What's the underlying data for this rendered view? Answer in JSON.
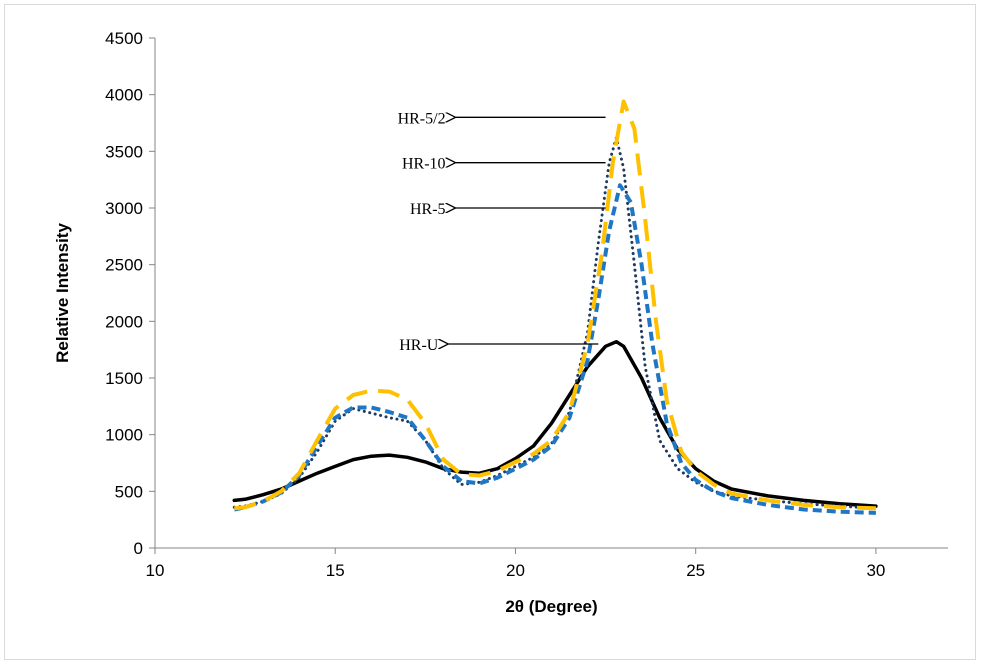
{
  "chart_data": {
    "type": "line",
    "title": "",
    "xlabel": "2θ (Degree)",
    "ylabel": "Relative Intensity",
    "xlim": [
      10,
      32
    ],
    "ylim": [
      0,
      4500
    ],
    "xticks": [
      10,
      15,
      20,
      25,
      30
    ],
    "yticks": [
      0,
      500,
      1000,
      1500,
      2000,
      2500,
      3000,
      3500,
      4000,
      4500
    ],
    "grid": false,
    "legend": "none",
    "series": [
      {
        "name": "HR-U",
        "color": "#000000",
        "style": "solid",
        "x": [
          12.2,
          12.5,
          13,
          13.5,
          14,
          14.5,
          15,
          15.5,
          16,
          16.5,
          17,
          17.5,
          18,
          18.5,
          19,
          19.5,
          20,
          20.5,
          21,
          21.5,
          22,
          22.5,
          22.8,
          23,
          23.5,
          24,
          24.5,
          25,
          25.5,
          26,
          27,
          28,
          29,
          30
        ],
        "y": [
          420,
          430,
          470,
          520,
          590,
          660,
          720,
          780,
          810,
          820,
          800,
          760,
          700,
          670,
          660,
          700,
          790,
          900,
          1100,
          1350,
          1600,
          1780,
          1820,
          1780,
          1500,
          1150,
          870,
          700,
          590,
          520,
          460,
          420,
          390,
          370
        ]
      },
      {
        "name": "HR-10",
        "color": "#1f3a60",
        "style": "dotted",
        "x": [
          12.2,
          12.5,
          13,
          13.5,
          14,
          14.5,
          15,
          15.5,
          16,
          16.5,
          17,
          17.5,
          18,
          18.5,
          19,
          19.5,
          20,
          20.5,
          21,
          21.5,
          22,
          22.3,
          22.6,
          22.8,
          23,
          23.3,
          23.6,
          24,
          24.5,
          25,
          25.5,
          26,
          27,
          28,
          29,
          30
        ],
        "y": [
          360,
          370,
          410,
          480,
          620,
          850,
          1120,
          1230,
          1190,
          1150,
          1120,
          950,
          700,
          560,
          580,
          640,
          720,
          800,
          920,
          1200,
          1900,
          2700,
          3400,
          3620,
          3350,
          2500,
          1600,
          950,
          700,
          580,
          500,
          460,
          420,
          390,
          370,
          350
        ]
      },
      {
        "name": "HR-5",
        "color": "#1f77c4",
        "style": "dashed",
        "x": [
          12.2,
          12.5,
          13,
          13.5,
          14,
          14.5,
          15,
          15.5,
          16,
          16.5,
          17,
          17.5,
          18,
          18.5,
          19,
          19.5,
          20,
          20.5,
          21,
          21.5,
          22,
          22.3,
          22.6,
          22.9,
          23.2,
          23.5,
          23.8,
          24.2,
          24.6,
          25,
          25.5,
          26,
          27,
          28,
          29,
          30
        ],
        "y": [
          340,
          360,
          410,
          490,
          640,
          900,
          1150,
          1240,
          1240,
          1200,
          1150,
          950,
          720,
          590,
          570,
          620,
          700,
          780,
          900,
          1150,
          1650,
          2200,
          2800,
          3200,
          3050,
          2500,
          1800,
          1100,
          750,
          600,
          500,
          440,
          380,
          340,
          320,
          310
        ]
      },
      {
        "name": "HR-5/2",
        "color": "#ffc000",
        "style": "longdash",
        "x": [
          12.2,
          12.5,
          13,
          13.5,
          14,
          14.5,
          15,
          15.5,
          16,
          16.5,
          17,
          17.5,
          18,
          18.5,
          19,
          19.5,
          20,
          20.5,
          21,
          21.5,
          22,
          22.4,
          22.7,
          23,
          23.3,
          23.6,
          23.9,
          24.2,
          24.6,
          25,
          25.5,
          26,
          27,
          28,
          29,
          30
        ],
        "y": [
          350,
          360,
          410,
          500,
          660,
          950,
          1230,
          1350,
          1390,
          1380,
          1310,
          1100,
          780,
          650,
          640,
          680,
          760,
          830,
          950,
          1200,
          1800,
          2600,
          3400,
          3940,
          3700,
          2900,
          2000,
          1300,
          850,
          680,
          560,
          480,
          420,
          380,
          360,
          350
        ]
      }
    ],
    "annotations": [
      {
        "text": "HR-5/2",
        "arrow_tip": [
          22.5,
          3800
        ]
      },
      {
        "text": "HR-10",
        "arrow_tip": [
          22.5,
          3400
        ]
      },
      {
        "text": "HR-5",
        "arrow_tip": [
          22.5,
          3000
        ]
      },
      {
        "text": "HR-U",
        "arrow_tip": [
          22.3,
          1800
        ]
      }
    ]
  }
}
